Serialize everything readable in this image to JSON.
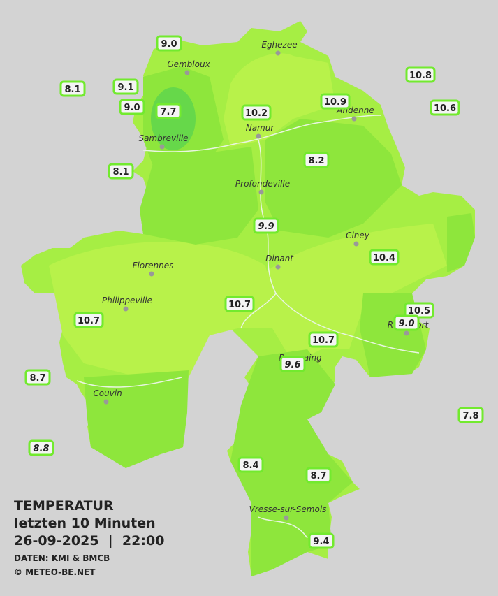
{
  "legend": {
    "title": "TEMPERATUR",
    "subtitle": "letzten 10 Minuten",
    "datetime": "26-09-2025  |  22:00",
    "source": "DATEN: KMI & BMCB",
    "copyright": "© METEO-BE.NET"
  },
  "cities": [
    "Eghezee",
    "Gembloux",
    "Andenne",
    "Namur",
    "Sambreville",
    "Profondeville",
    "Ciney",
    "Dinant",
    "Florennes",
    "Philippeville",
    "Rochefort",
    "Beauraing",
    "Couvin",
    "Vresse-sur-Semois"
  ],
  "stations": [
    {
      "label": "9.0"
    },
    {
      "label": "8.1"
    },
    {
      "label": "9.1"
    },
    {
      "label": "9.0"
    },
    {
      "label": "7.7"
    },
    {
      "label": "10.2"
    },
    {
      "label": "10.9"
    },
    {
      "label": "10.8"
    },
    {
      "label": "10.6"
    },
    {
      "label": "8.1"
    },
    {
      "label": "8.2"
    },
    {
      "label": "9.9"
    },
    {
      "label": "10.4"
    },
    {
      "label": "10.7"
    },
    {
      "label": "10.5"
    },
    {
      "label": "9.0"
    },
    {
      "label": "10.7"
    },
    {
      "label": "10.7"
    },
    {
      "label": "9.6"
    },
    {
      "label": "8.7"
    },
    {
      "label": "7.8"
    },
    {
      "label": "8.8"
    },
    {
      "label": "8.4"
    },
    {
      "label": "8.7"
    },
    {
      "label": "9.4"
    }
  ]
}
